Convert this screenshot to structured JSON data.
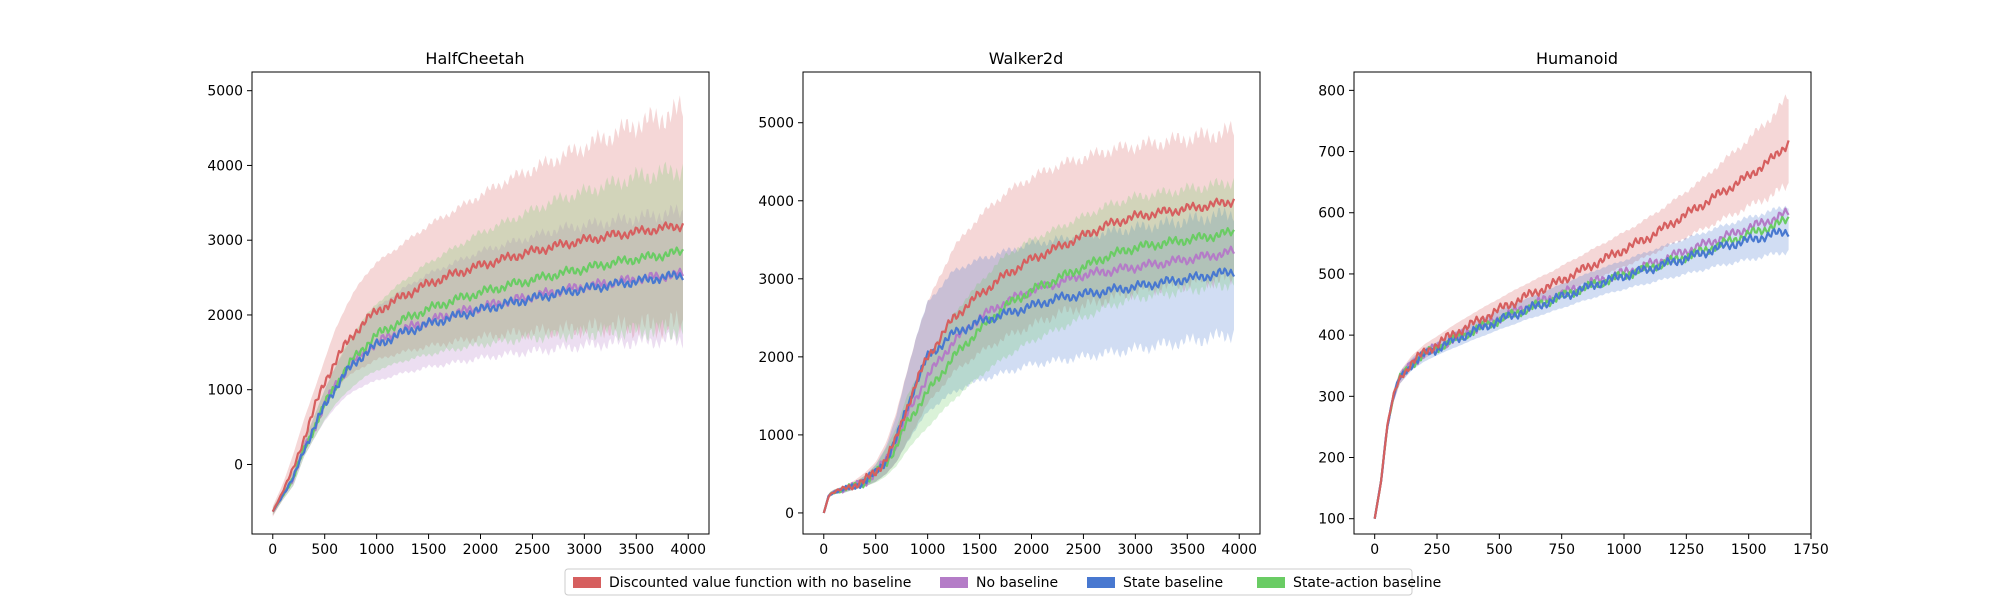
{
  "chart_data": [
    {
      "type": "line",
      "title": "HalfCheetah",
      "xlim": [
        -200,
        4200
      ],
      "ylim": [
        -930,
        5250
      ],
      "xticks": [
        0,
        500,
        1000,
        1500,
        2000,
        2500,
        3000,
        3500,
        4000
      ],
      "yticks": [
        0,
        1000,
        2000,
        3000,
        4000,
        5000
      ],
      "x": [
        0,
        100,
        200,
        300,
        400,
        500,
        600,
        700,
        800,
        900,
        1000,
        1250,
        1500,
        1750,
        2000,
        2250,
        2500,
        2750,
        3000,
        3250,
        3500,
        3750,
        3950
      ],
      "series": [
        {
          "name": "Discounted value function with no baseline",
          "key": "red",
          "values": [
            -630,
            -350,
            -50,
            350,
            750,
            1100,
            1380,
            1600,
            1780,
            1930,
            2050,
            2250,
            2420,
            2550,
            2660,
            2760,
            2850,
            2930,
            3000,
            3060,
            3110,
            3160,
            3200
          ],
          "lower": [
            -700,
            -450,
            -200,
            150,
            500,
            800,
            1000,
            1150,
            1250,
            1330,
            1400,
            1500,
            1580,
            1640,
            1700,
            1740,
            1770,
            1800,
            1820,
            1840,
            1850,
            1860,
            1870
          ],
          "upper": [
            -560,
            -250,
            150,
            600,
            1000,
            1400,
            1800,
            2100,
            2350,
            2550,
            2700,
            2950,
            3200,
            3400,
            3600,
            3800,
            3950,
            4100,
            4250,
            4400,
            4550,
            4650,
            4750
          ]
        },
        {
          "name": "No baseline",
          "key": "purple",
          "values": [
            -630,
            -400,
            -180,
            200,
            500,
            800,
            1050,
            1250,
            1400,
            1530,
            1630,
            1800,
            1920,
            2020,
            2100,
            2180,
            2250,
            2320,
            2380,
            2430,
            2480,
            2520,
            2550
          ],
          "lower": [
            -680,
            -470,
            -280,
            100,
            350,
            580,
            760,
            900,
            1000,
            1070,
            1120,
            1220,
            1300,
            1360,
            1420,
            1470,
            1510,
            1550,
            1590,
            1620,
            1640,
            1660,
            1680
          ],
          "upper": [
            -580,
            -330,
            -80,
            300,
            650,
            1000,
            1300,
            1550,
            1750,
            1950,
            2100,
            2350,
            2550,
            2700,
            2850,
            2950,
            3050,
            3150,
            3200,
            3250,
            3300,
            3350,
            3380
          ]
        },
        {
          "name": "State baseline",
          "key": "blue",
          "values": [
            -630,
            -400,
            -180,
            200,
            500,
            780,
            1020,
            1220,
            1370,
            1500,
            1600,
            1760,
            1880,
            1980,
            2070,
            2150,
            2220,
            2290,
            2350,
            2400,
            2450,
            2500,
            2540
          ]
        },
        {
          "name": "State-action baseline",
          "key": "green",
          "values": [
            -630,
            -400,
            -180,
            200,
            500,
            800,
            1050,
            1270,
            1450,
            1600,
            1730,
            1930,
            2080,
            2200,
            2300,
            2390,
            2470,
            2550,
            2620,
            2690,
            2750,
            2800,
            2850
          ],
          "lower": [
            -680,
            -470,
            -280,
            100,
            350,
            600,
            800,
            950,
            1080,
            1180,
            1260,
            1380,
            1470,
            1540,
            1600,
            1650,
            1690,
            1720,
            1750,
            1770,
            1780,
            1790,
            1800
          ],
          "upper": [
            -580,
            -330,
            -80,
            300,
            650,
            1000,
            1300,
            1580,
            1800,
            2000,
            2150,
            2450,
            2700,
            2900,
            3100,
            3250,
            3400,
            3550,
            3650,
            3750,
            3850,
            3900,
            3950
          ]
        }
      ]
    },
    {
      "type": "line",
      "title": "Walker2d",
      "xlim": [
        -200,
        4200
      ],
      "ylim": [
        -270,
        5650
      ],
      "xticks": [
        0,
        500,
        1000,
        1500,
        2000,
        2500,
        3000,
        3500,
        4000
      ],
      "yticks": [
        0,
        1000,
        2000,
        3000,
        4000,
        5000
      ],
      "x": [
        0,
        50,
        100,
        200,
        300,
        400,
        500,
        600,
        700,
        800,
        900,
        1000,
        1250,
        1500,
        1750,
        2000,
        2250,
        2500,
        2750,
        3000,
        3250,
        3500,
        3750,
        3950
      ],
      "series": [
        {
          "name": "Discounted value function with no baseline",
          "key": "red",
          "values": [
            0,
            230,
            270,
            310,
            360,
            420,
            520,
            700,
            950,
            1350,
            1700,
            2000,
            2500,
            2800,
            3050,
            3250,
            3400,
            3550,
            3700,
            3800,
            3850,
            3900,
            3950,
            4000
          ],
          "lower": [
            0,
            200,
            240,
            270,
            300,
            340,
            400,
            500,
            650,
            900,
            1150,
            1400,
            1800,
            2050,
            2250,
            2400,
            2550,
            2650,
            2750,
            2850,
            2900,
            2950,
            3000,
            3000
          ],
          "upper": [
            0,
            260,
            300,
            350,
            420,
            520,
            650,
            900,
            1300,
            1800,
            2300,
            2700,
            3400,
            3800,
            4100,
            4300,
            4450,
            4550,
            4650,
            4700,
            4750,
            4800,
            4850,
            4900
          ]
        },
        {
          "name": "No baseline",
          "key": "purple",
          "values": [
            0,
            230,
            270,
            300,
            350,
            410,
            510,
            680,
            900,
            1250,
            1500,
            1750,
            2200,
            2500,
            2700,
            2850,
            2950,
            3050,
            3100,
            3150,
            3200,
            3250,
            3300,
            3350
          ]
        },
        {
          "name": "State baseline",
          "key": "blue",
          "values": [
            0,
            230,
            270,
            300,
            350,
            410,
            510,
            680,
            950,
            1350,
            1700,
            2000,
            2300,
            2450,
            2550,
            2650,
            2750,
            2800,
            2850,
            2900,
            2950,
            3000,
            3050,
            3100
          ],
          "lower": [
            0,
            200,
            240,
            260,
            300,
            340,
            400,
            500,
            650,
            900,
            1100,
            1300,
            1550,
            1700,
            1800,
            1900,
            1950,
            2000,
            2050,
            2100,
            2150,
            2200,
            2250,
            2300
          ],
          "upper": [
            0,
            260,
            300,
            340,
            400,
            480,
            620,
            850,
            1250,
            1800,
            2300,
            2700,
            3100,
            3250,
            3350,
            3450,
            3500,
            3550,
            3600,
            3650,
            3700,
            3750,
            3800,
            3850
          ]
        },
        {
          "name": "State-action baseline",
          "key": "green",
          "values": [
            0,
            230,
            270,
            300,
            350,
            410,
            500,
            650,
            850,
            1150,
            1350,
            1550,
            2000,
            2350,
            2650,
            2850,
            3000,
            3150,
            3300,
            3400,
            3450,
            3500,
            3550,
            3600
          ],
          "lower": [
            0,
            200,
            240,
            260,
            300,
            340,
            390,
            470,
            600,
            800,
            950,
            1100,
            1450,
            1750,
            2000,
            2200,
            2350,
            2500,
            2650,
            2750,
            2800,
            2850,
            2900,
            2950
          ],
          "upper": [
            0,
            260,
            300,
            340,
            400,
            480,
            610,
            830,
            1100,
            1500,
            1750,
            2000,
            2550,
            2950,
            3300,
            3500,
            3650,
            3800,
            3950,
            4050,
            4100,
            4150,
            4200,
            4250
          ]
        }
      ]
    },
    {
      "type": "line",
      "title": "Humanoid",
      "xlim": [
        -83,
        1750
      ],
      "ylim": [
        75,
        830
      ],
      "xticks": [
        0,
        250,
        500,
        750,
        1000,
        1250,
        1500,
        1750
      ],
      "yticks": [
        100,
        200,
        300,
        400,
        500,
        600,
        700,
        800
      ],
      "x": [
        0,
        25,
        50,
        75,
        100,
        150,
        200,
        250,
        300,
        400,
        500,
        600,
        700,
        800,
        900,
        1000,
        1100,
        1200,
        1300,
        1400,
        1500,
        1600,
        1660
      ],
      "series": [
        {
          "name": "Discounted value function with no baseline",
          "key": "red",
          "values": [
            100,
            160,
            250,
            300,
            330,
            355,
            372,
            385,
            398,
            420,
            442,
            462,
            480,
            500,
            520,
            540,
            560,
            585,
            610,
            635,
            660,
            690,
            715
          ],
          "lower": [
            100,
            155,
            240,
            290,
            320,
            345,
            362,
            373,
            385,
            405,
            425,
            443,
            460,
            478,
            495,
            512,
            530,
            550,
            570,
            590,
            610,
            630,
            645
          ],
          "upper": [
            100,
            165,
            260,
            310,
            340,
            367,
            385,
            398,
            412,
            437,
            460,
            482,
            502,
            524,
            546,
            568,
            592,
            620,
            650,
            685,
            720,
            760,
            790
          ]
        },
        {
          "name": "No baseline",
          "key": "purple",
          "values": [
            100,
            160,
            250,
            300,
            330,
            355,
            370,
            380,
            390,
            410,
            428,
            445,
            460,
            475,
            490,
            502,
            515,
            530,
            545,
            560,
            575,
            590,
            600
          ]
        },
        {
          "name": "State baseline",
          "key": "blue",
          "values": [
            100,
            160,
            250,
            300,
            330,
            353,
            368,
            378,
            388,
            407,
            424,
            440,
            455,
            470,
            485,
            497,
            508,
            520,
            532,
            545,
            555,
            565,
            570
          ],
          "lower": [
            100,
            155,
            240,
            290,
            320,
            343,
            357,
            367,
            376,
            393,
            409,
            424,
            437,
            451,
            464,
            475,
            485,
            495,
            505,
            515,
            523,
            532,
            537
          ],
          "upper": [
            100,
            165,
            260,
            310,
            340,
            363,
            379,
            389,
            401,
            421,
            441,
            458,
            475,
            492,
            508,
            522,
            537,
            551,
            565,
            579,
            592,
            604,
            612
          ]
        },
        {
          "name": "State-action baseline",
          "key": "green",
          "values": [
            100,
            160,
            250,
            300,
            330,
            354,
            369,
            379,
            389,
            408,
            425,
            441,
            456,
            471,
            485,
            498,
            510,
            522,
            535,
            550,
            565,
            578,
            590
          ]
        }
      ]
    }
  ],
  "legend": {
    "placement": "bottom-center",
    "items": [
      {
        "label": "Discounted value function with no baseline",
        "color": "#d65f5f"
      },
      {
        "label": "No baseline",
        "color": "#b47cc7"
      },
      {
        "label": "State baseline",
        "color": "#4878d0"
      },
      {
        "label": "State-action baseline",
        "color": "#6acc64"
      }
    ]
  },
  "colors": {
    "red": "#d65f5f",
    "purple": "#b47cc7",
    "blue": "#4878d0",
    "green": "#6acc64"
  }
}
